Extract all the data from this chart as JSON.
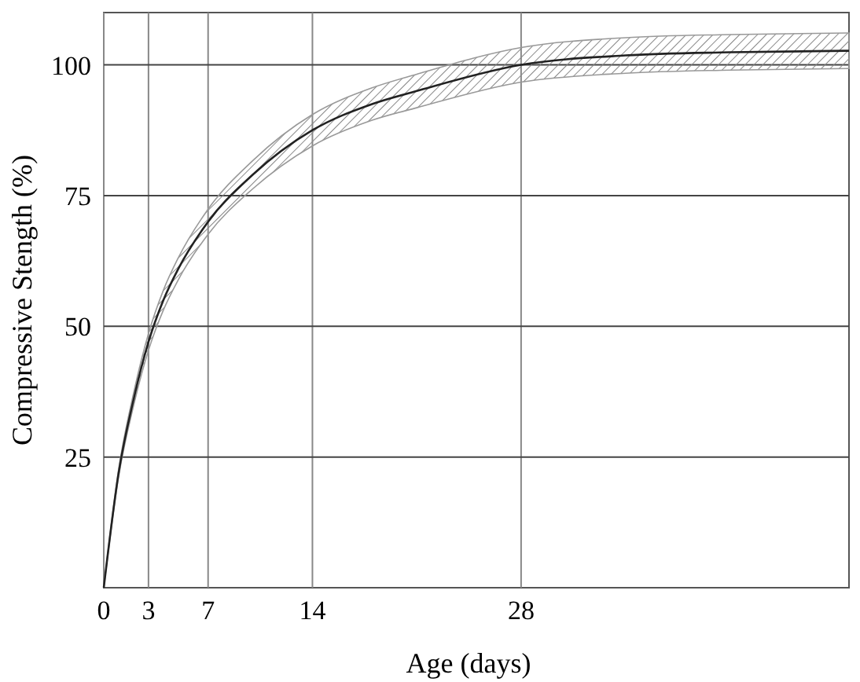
{
  "chart_data": {
    "type": "line",
    "xlabel": "Age (days)",
    "ylabel": "Compressive Stength (%)",
    "xlim": [
      0,
      50
    ],
    "xticks": [
      0,
      3,
      7,
      14,
      28
    ],
    "ylim": [
      0,
      110
    ],
    "yticks": [
      25,
      50,
      75,
      100
    ],
    "grid": true,
    "series": [
      {
        "color": "#222222",
        "x": [
          0,
          1,
          2,
          3,
          4,
          5,
          7,
          10,
          14,
          18,
          21,
          28,
          35,
          42,
          50
        ],
        "values": [
          0,
          22,
          36,
          47,
          55,
          61,
          70,
          79,
          87.5,
          92.5,
          95,
          100,
          101.8,
          102.4,
          102.7
        ],
        "lower": [
          0,
          21.3,
          34.8,
          45.4,
          53.1,
          58.9,
          67.6,
          76.3,
          84.5,
          89.4,
          91.8,
          96.7,
          98.4,
          99,
          99.3
        ],
        "upper": [
          0,
          22.7,
          37.2,
          48.6,
          56.9,
          63.1,
          72.4,
          81.7,
          90.5,
          95.6,
          98.2,
          103.3,
          105.2,
          105.8,
          106.1
        ]
      }
    ]
  }
}
